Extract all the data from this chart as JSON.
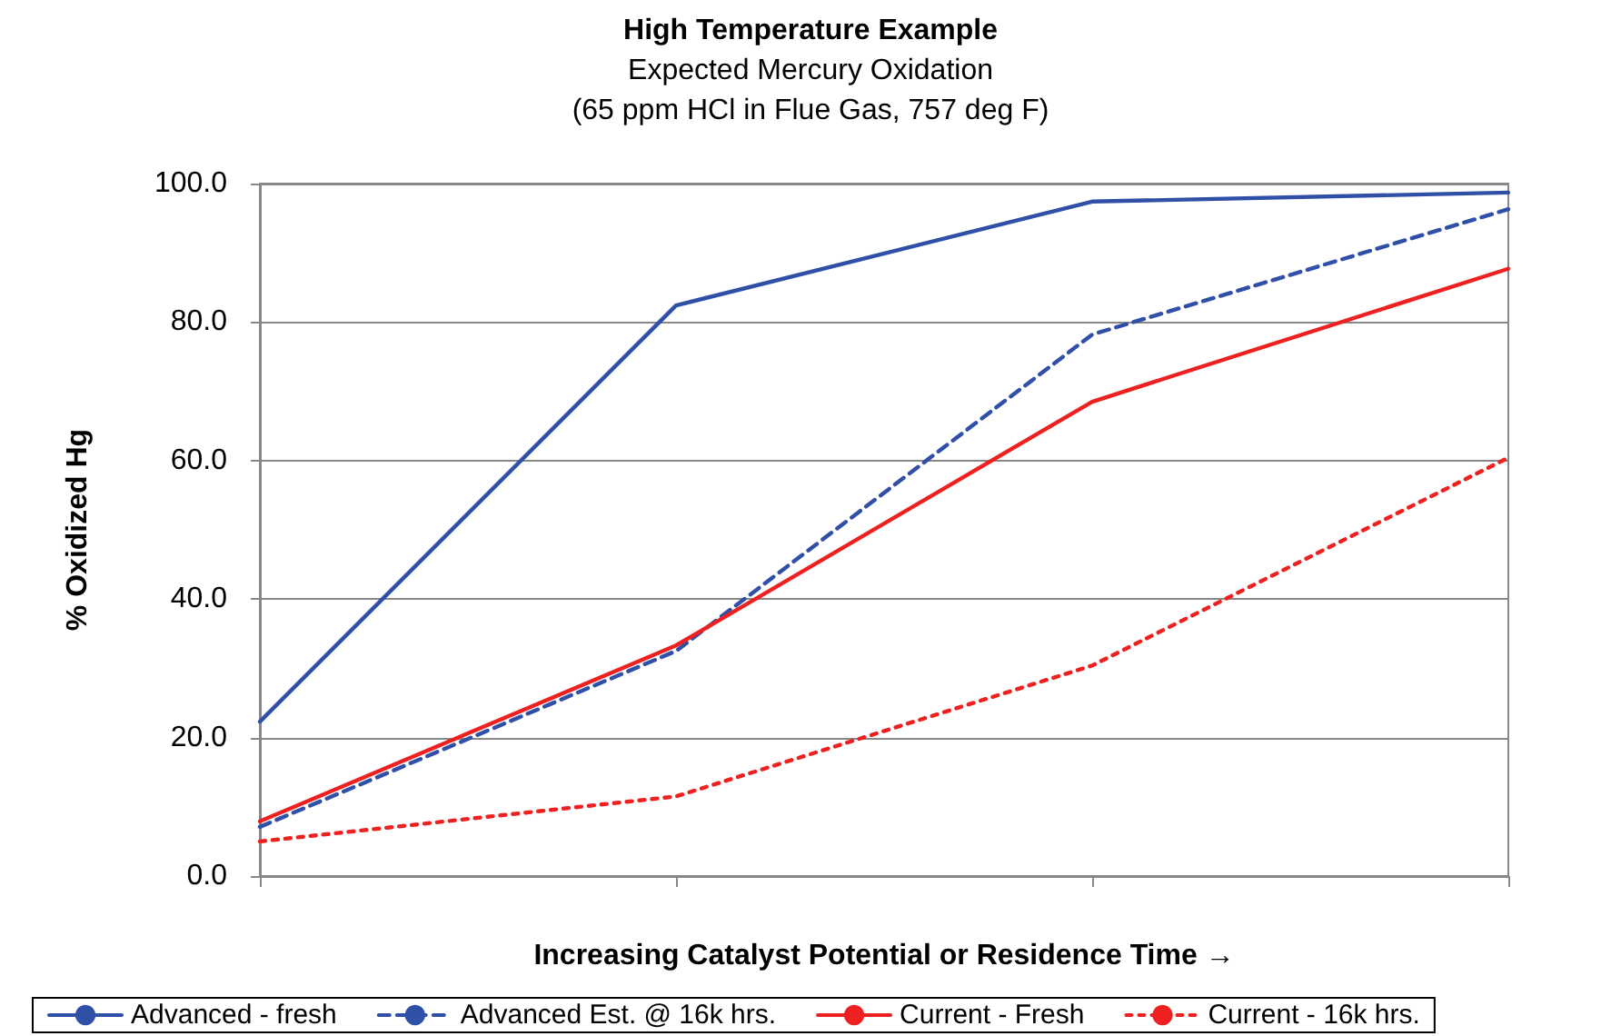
{
  "chart_data": {
    "type": "line",
    "title": "High Temperature Example",
    "subtitle": "Expected Mercury Oxidation\n(65 ppm HCl in Flue Gas, 757 deg F)",
    "xlabel": "Increasing Catalyst Potential or Residence Time →",
    "ylabel": "% Oxidized Hg",
    "categories": [
      null,
      null,
      null,
      null
    ],
    "series": [
      {
        "name": "Advanced - fresh",
        "color": "#3050a8",
        "line_style": "solid",
        "values": [
          22.3,
          82.4,
          97.4,
          98.7
        ]
      },
      {
        "name": "Advanced Est. @ 16k hrs.",
        "color": "#3050a8",
        "line_style": "dashed",
        "values": [
          7.1,
          32.5,
          78.2,
          96.3
        ]
      },
      {
        "name": "Current - Fresh",
        "color": "#ee2020",
        "line_style": "solid",
        "values": [
          7.9,
          33.3,
          68.5,
          87.7
        ]
      },
      {
        "name": "Current - 16k hrs.",
        "color": "#ee2020",
        "line_style": "dotted",
        "values": [
          5.0,
          11.5,
          30.4,
          60.4
        ]
      }
    ],
    "ylim": [
      0,
      100
    ],
    "yticks": [
      {
        "value": 0,
        "label": "0.0"
      },
      {
        "value": 20,
        "label": "20.0"
      },
      {
        "value": 40,
        "label": "40.0"
      },
      {
        "value": 60,
        "label": "60.0"
      },
      {
        "value": 80,
        "label": "80.0"
      },
      {
        "value": 100,
        "label": "100.0"
      }
    ],
    "grid": "y",
    "legend": "bottom",
    "marker": "none"
  }
}
